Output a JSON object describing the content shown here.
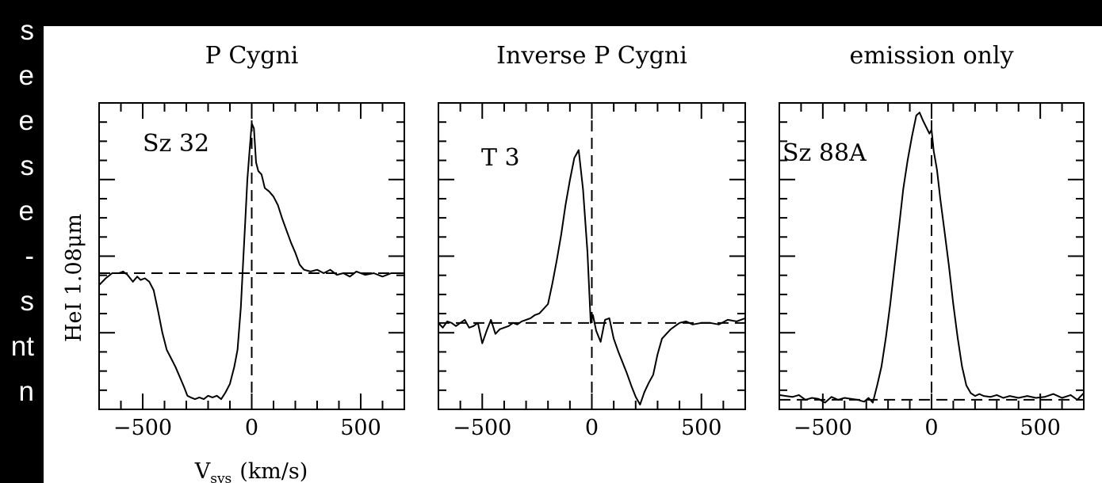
{
  "side_text": [
    "s",
    "e",
    "e",
    "s",
    "e",
    "-",
    "s",
    "nt",
    "n"
  ],
  "figure": {
    "ylabel": "HeI 1.08μm",
    "xlabel_main": "V",
    "xlabel_sub": "sys",
    "xlabel_unit": "(km/s)"
  },
  "chart_data": [
    {
      "type": "line",
      "title": "P Cygni",
      "annotation": "Sz 32",
      "xlabel": "V_sys (km/s)",
      "ylabel": "HeI 1.08μm",
      "xlim": [
        -700,
        700
      ],
      "xticks": [
        -500,
        0,
        500
      ],
      "tick_labels": [
        "−500",
        "0",
        "500"
      ],
      "continuum": 1.0,
      "zero_velocity": 0,
      "ylim": [
        0.2,
        2.0
      ],
      "series": [
        {
          "x": [
            -700,
            -670,
            -640,
            -610,
            -590,
            -570,
            -545,
            -525,
            -510,
            -490,
            -470,
            -450,
            -430,
            -410,
            -390,
            -370,
            -350,
            -330,
            -310,
            -295,
            -280,
            -260,
            -240,
            -220,
            -200,
            -180,
            -160,
            -140,
            -120,
            -100,
            -80,
            -65,
            -50,
            -40,
            -30,
            -20,
            -10,
            0,
            10,
            20,
            30,
            45,
            60,
            80,
            100,
            120,
            140,
            160,
            180,
            200,
            220,
            240,
            270,
            300,
            330,
            360,
            390,
            420,
            450,
            480,
            520,
            560,
            600,
            640,
            700
          ],
          "y": [
            0.93,
            0.97,
            1.0,
            1.0,
            1.01,
            0.99,
            0.95,
            0.98,
            0.96,
            0.97,
            0.95,
            0.9,
            0.78,
            0.65,
            0.55,
            0.5,
            0.45,
            0.39,
            0.33,
            0.28,
            0.27,
            0.26,
            0.27,
            0.26,
            0.28,
            0.27,
            0.28,
            0.26,
            0.3,
            0.35,
            0.45,
            0.55,
            0.8,
            1.05,
            1.3,
            1.55,
            1.72,
            1.88,
            1.85,
            1.65,
            1.6,
            1.58,
            1.5,
            1.48,
            1.45,
            1.4,
            1.32,
            1.25,
            1.18,
            1.12,
            1.05,
            1.02,
            1.01,
            1.02,
            1.0,
            1.02,
            0.99,
            1.0,
            0.98,
            1.01,
            0.99,
            1.0,
            0.98,
            1.0,
            1.0
          ]
        }
      ]
    },
    {
      "type": "line",
      "title": "Inverse P Cygni",
      "annotation": "T 3",
      "xlim": [
        -700,
        700
      ],
      "xticks": [
        -500,
        0,
        500
      ],
      "tick_labels": [
        "−500",
        "0",
        "500"
      ],
      "continuum": 1.0,
      "zero_velocity": 0,
      "ylim": [
        0.45,
        2.4
      ],
      "series": [
        {
          "x": [
            -700,
            -680,
            -660,
            -640,
            -620,
            -600,
            -580,
            -560,
            -540,
            -520,
            -500,
            -480,
            -460,
            -440,
            -420,
            -400,
            -380,
            -360,
            -340,
            -320,
            -300,
            -280,
            -260,
            -240,
            -220,
            -200,
            -180,
            -160,
            -140,
            -120,
            -100,
            -80,
            -60,
            -40,
            -20,
            -5,
            5,
            20,
            40,
            60,
            80,
            100,
            120,
            140,
            160,
            180,
            200,
            220,
            240,
            260,
            280,
            300,
            320,
            340,
            360,
            380,
            400,
            430,
            460,
            500,
            540,
            580,
            620,
            660,
            700
          ],
          "y": [
            1.0,
            0.97,
            1.01,
            1.0,
            0.98,
            1.0,
            1.02,
            0.97,
            0.98,
            1.0,
            0.87,
            0.95,
            1.02,
            0.93,
            0.96,
            0.97,
            0.98,
            1.0,
            0.99,
            1.01,
            1.02,
            1.03,
            1.05,
            1.06,
            1.09,
            1.12,
            1.25,
            1.4,
            1.56,
            1.75,
            1.91,
            2.05,
            2.1,
            1.85,
            1.45,
            1.0,
            1.05,
            0.95,
            0.88,
            1.02,
            1.03,
            0.9,
            0.82,
            0.75,
            0.68,
            0.6,
            0.53,
            0.48,
            0.56,
            0.62,
            0.67,
            0.8,
            0.9,
            0.93,
            0.96,
            0.98,
            1.0,
            1.01,
            0.99,
            1.0,
            1.0,
            0.99,
            1.02,
            1.01,
            1.03
          ]
        }
      ]
    },
    {
      "type": "line",
      "title": "emission only",
      "annotation": "Sz 88A",
      "xlim": [
        -700,
        700
      ],
      "xticks": [
        -500,
        0,
        500
      ],
      "tick_labels": [
        "−500",
        "0",
        "500"
      ],
      "continuum": 1.0,
      "zero_velocity": 0,
      "ylim": [
        0.9,
        4.1
      ],
      "series": [
        {
          "x": [
            -700,
            -670,
            -640,
            -610,
            -580,
            -550,
            -520,
            -490,
            -460,
            -430,
            -400,
            -370,
            -340,
            -310,
            -290,
            -270,
            -250,
            -230,
            -210,
            -190,
            -170,
            -150,
            -130,
            -110,
            -90,
            -70,
            -55,
            -40,
            -25,
            -10,
            0,
            10,
            25,
            40,
            60,
            80,
            100,
            120,
            140,
            160,
            180,
            200,
            220,
            240,
            270,
            300,
            330,
            360,
            400,
            440,
            480,
            520,
            560,
            600,
            640,
            670,
            700
          ],
          "y": [
            1.05,
            1.04,
            1.03,
            1.05,
            1.0,
            1.02,
            1.01,
            0.97,
            1.03,
            1.0,
            1.02,
            1.01,
            1.0,
            0.98,
            1.02,
            0.97,
            1.15,
            1.35,
            1.65,
            2.0,
            2.4,
            2.8,
            3.2,
            3.5,
            3.75,
            3.97,
            4.0,
            3.92,
            3.85,
            3.78,
            3.82,
            3.6,
            3.4,
            3.1,
            2.75,
            2.4,
            2.0,
            1.65,
            1.35,
            1.15,
            1.07,
            1.04,
            1.06,
            1.04,
            1.03,
            1.05,
            1.02,
            1.04,
            1.02,
            1.04,
            1.02,
            1.03,
            1.06,
            1.02,
            1.05,
            1.0,
            1.07
          ]
        }
      ]
    }
  ]
}
